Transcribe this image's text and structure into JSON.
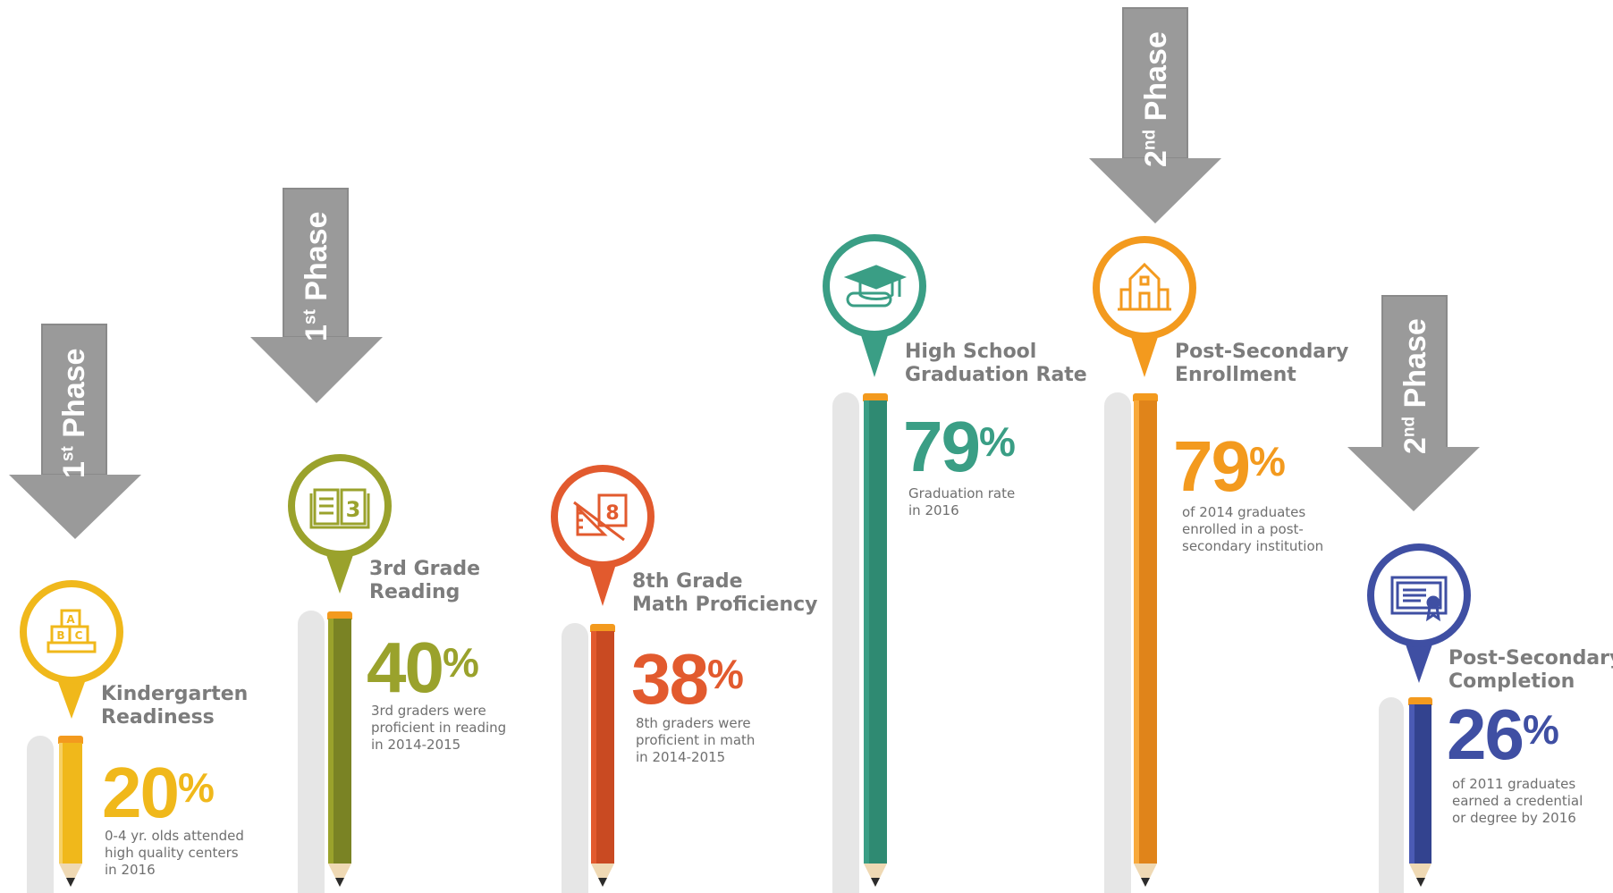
{
  "arrows": [
    {
      "text": "1",
      "suffix": "st",
      "word": " Phase"
    },
    {
      "text": "1",
      "suffix": "st",
      "word": " Phase"
    },
    {
      "text": "2",
      "suffix": "nd",
      "word": " Phase"
    },
    {
      "text": "2",
      "suffix": "nd",
      "word": " Phase"
    }
  ],
  "metrics": [
    {
      "title_line1": "Kindergarten",
      "title_line2": "Readiness",
      "value": "20",
      "unit": "%",
      "desc_line1": "0-4 yr. olds attended",
      "desc_line2": "high quality centers",
      "desc_line3": "in 2016",
      "icon": "abc-blocks-icon",
      "color": "#f0b81b"
    },
    {
      "title_line1": "3rd Grade",
      "title_line2": "Reading",
      "value": "40",
      "unit": "%",
      "desc_line1": "3rd graders were",
      "desc_line2": "proficient in reading",
      "desc_line3": "in 2014-2015",
      "icon": "open-book-icon",
      "color": "#9aa22c"
    },
    {
      "title_line1": "8th Grade",
      "title_line2": "Math Proficiency",
      "value": "38",
      "unit": "%",
      "desc_line1": "8th graders were",
      "desc_line2": "proficient in math",
      "desc_line3": "in 2014-2015",
      "icon": "math-ruler-icon",
      "color": "#e25a2e"
    },
    {
      "title_line1": "High School",
      "title_line2": "Graduation Rate",
      "value": "79",
      "unit": "%",
      "desc_line1": "Graduation rate",
      "desc_line2": "in 2016",
      "desc_line3": "",
      "icon": "graduation-cap-icon",
      "color": "#3a9e85"
    },
    {
      "title_line1": "Post-Secondary",
      "title_line2": "Enrollment",
      "value": "79",
      "unit": "%",
      "desc_line1": "of 2014 graduates",
      "desc_line2": "enrolled in a post-",
      "desc_line3": "secondary institution",
      "icon": "school-building-icon",
      "color": "#f39a1e"
    },
    {
      "title_line1": "Post-Secondary",
      "title_line2": "Completion",
      "value": "26",
      "unit": "%",
      "desc_line1": "of 2011 graduates",
      "desc_line2": "earned a credential",
      "desc_line3": "or degree by 2016",
      "icon": "certificate-icon",
      "color": "#3f4fa3"
    }
  ]
}
